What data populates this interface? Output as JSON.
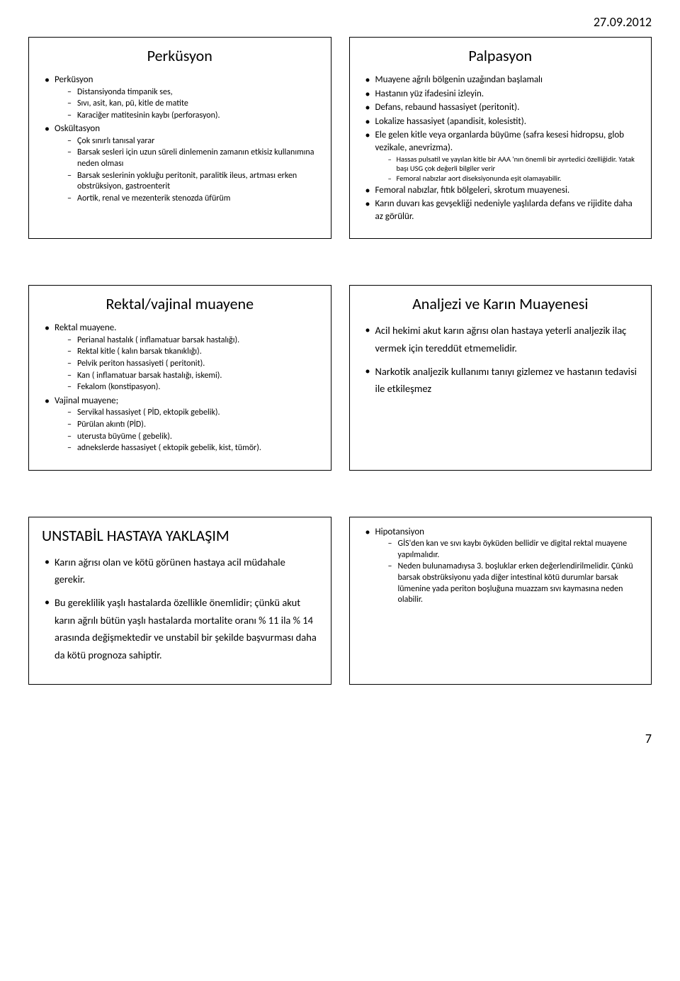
{
  "meta": {
    "date": "27.09.2012",
    "page": "7"
  },
  "slides": [
    {
      "title": "Perküsyon",
      "title_align": "center",
      "items": [
        {
          "text": "Perküsyon",
          "children": [
            "Distansiyonda timpanik ses,",
            "Sıvı, asit, kan, pü, kitle de matite",
            "Karaciğer matitesinin kaybı (perforasyon)."
          ]
        },
        {
          "text": "Oskültasyon",
          "children": [
            "Çok sınırlı tanısal yarar",
            "Barsak sesleri için uzun süreli dinlemenin zamanın etkisiz kullanımına neden olması",
            "Barsak seslerinin yokluğu peritonit, paralitik ileus, artması erken obstrüksiyon, gastroenterit",
            "Aortik, renal ve mezenterik stenozda üfürüm"
          ]
        }
      ]
    },
    {
      "title": "Palpasyon",
      "title_align": "center",
      "items": [
        {
          "text": "Muayene ağrılı bölgenin uzağından başlamalı"
        },
        {
          "text": "Hastanın yüz ifadesini izleyin."
        },
        {
          "text": "Defans, rebaund hassasiyet (peritonit)."
        },
        {
          "text": "Lokalize hassasiyet (apandisit, kolesistit)."
        },
        {
          "text": "Ele gelen kitle veya organlarda büyüme (safra kesesi hidropsu, glob vezikale, anevrizma).",
          "sub2": [
            "Hassas pulsatil ve yayılan kitle bir AAA 'nın önemli bir ayırtedici özelliğidir. Yatak başı USG çok değerli bilgiler verir",
            "Femoral nabızlar aort diseksiyonunda eşit olamayabilir."
          ]
        },
        {
          "text": "Femoral nabızlar, fıtık bölgeleri, skrotum muayenesi."
        },
        {
          "text": "Karın duvarı kas gevşekliği nedeniyle yaşlılarda defans ve rijidite daha az görülür."
        }
      ]
    },
    {
      "title": "Rektal/vajinal muayene",
      "title_align": "center",
      "items": [
        {
          "text": "Rektal muayene.",
          "children": [
            "Perianal hastalık ( inflamatuar barsak hastalığı).",
            "Rektal kitle ( kalın barsak tıkanıklığı).",
            "Pelvik periton hassasiyeti ( peritonit).",
            "Kan ( inflamatuar barsak hastalığı, iskemi).",
            "Fekalom (konstipasyon)."
          ]
        },
        {
          "text": "Vajinal muayene;",
          "children": [
            "Servikal hassasiyet ( PİD, ektopik gebelik).",
            "Pürülan akıntı (PİD).",
            "uterusta büyüme ( gebelik).",
            "adnekslerde hassasiyet ( ektopik gebelik, kist, tümör)."
          ]
        }
      ]
    },
    {
      "title": "Analjezi ve Karın Muayenesi",
      "title_align": "center",
      "big": true,
      "items": [
        {
          "text": "Acil hekimi akut karın ağrısı olan hastaya yeterli analjezik ilaç vermek için tereddüt etmemelidir."
        },
        {
          "text": "Narkotik analjezik kullanımı tanıyı gizlemez ve hastanın tedavisi ile etkileşmez"
        }
      ]
    },
    {
      "title": "UNSTABİL HASTAYA YAKLAŞIM",
      "title_align": "left",
      "big": true,
      "items": [
        {
          "text": "Karın ağrısı olan ve  kötü görünen hastaya acil müdahale gerekir."
        },
        {
          "text": "Bu gereklilik yaşlı hastalarda özellikle önemlidir; çünkü akut karın ağrılı bütün yaşlı hastalarda mortalite oranı % 11 ila % 14 arasında değişmektedir ve unstabil bir şekilde başvurması daha da kötü prognoza sahiptir."
        }
      ]
    },
    {
      "title": "",
      "title_align": "left",
      "items": [
        {
          "text": "Hipotansiyon",
          "children": [
            "GİS'den kan ve sıvı kaybı öyküden bellidir ve digital rektal muayene yapılmalıdır.",
            "Neden bulunamadıysa 3. boşluklar erken değerlendirilmelidir. Çünkü barsak obstrüksiyonu yada diğer intestinal kötü durumlar barsak lümenine yada periton boşluğuna muazzam sıvı kaymasına neden olabilir."
          ]
        }
      ]
    }
  ]
}
